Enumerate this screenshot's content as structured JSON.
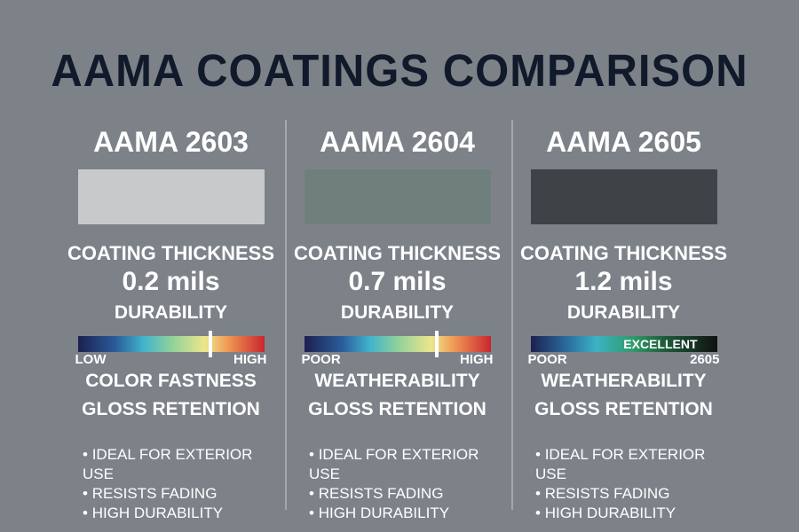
{
  "title": "AAMA COATINGS COMPARISON",
  "columns": [
    {
      "name": "AAMA 2603",
      "swatch": "#c7c9cb",
      "thickness_label": "COATING THICKNESS",
      "thickness": "0.2 mils",
      "durability_label": "DURABILITY",
      "marker": 0.71,
      "bar_text": "",
      "low": "LOW",
      "high": "HIGH",
      "feature1": "COLOR FASTNESS",
      "feature2": "GLOSS RETENTION",
      "bullets": [
        "IDEAL FOR EXTERIOR USE",
        "RESISTS FADING",
        "HIGH DURABILITY"
      ]
    },
    {
      "name": "AAMA 2604",
      "swatch": "#6f807c",
      "thickness_label": "COATING THICKNESS",
      "thickness": "0.7 mils",
      "durability_label": "DURABILITY",
      "marker": 0.71,
      "bar_text": "",
      "low": "POOR",
      "high": "HIGH",
      "feature1": "WEATHERABILITY",
      "feature2": "GLOSS RETENTION",
      "bullets": [
        "IDEAL FOR EXTERIOR USE",
        "RESISTS FADING",
        "HIGH DURABILITY"
      ]
    },
    {
      "name": "AAMA 2605",
      "swatch": "#3d4347",
      "thickness_label": "COATING THICKNESS",
      "thickness": "1.2 mils",
      "durability_label": "DURABILITY",
      "marker": null,
      "bar_text": "EXCELLENT",
      "low": "POOR",
      "high": "2605",
      "feature1": "WEATHERABILITY",
      "feature2": "GLOSS RETENTION",
      "bullets": [
        "IDEAL FOR EXTERIOR USE",
        "RESISTS FADING",
        "HIGH DURABILITY"
      ]
    }
  ]
}
